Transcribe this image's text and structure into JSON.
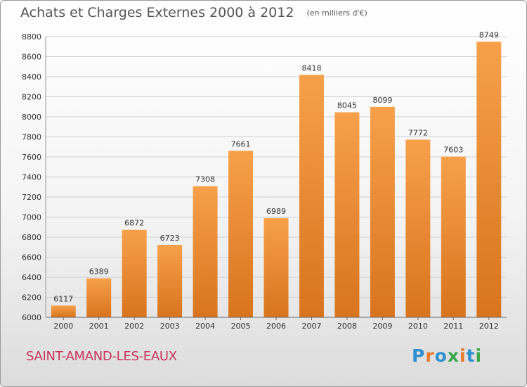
{
  "title": "Achats et Charges Externes 2000 à 2012",
  "unit": "(en milliers d'€)",
  "commune": "SAINT-AMAND-LES-EAUX",
  "logo": {
    "text": "Proxiti",
    "letters": [
      {
        "ch": "P",
        "color": "#2e8fd0"
      },
      {
        "ch": "r",
        "color": "#e9792b"
      },
      {
        "ch": "o",
        "color": "#2e8fd0"
      },
      {
        "ch": "x",
        "color": "#3aa64b"
      },
      {
        "ch": "i",
        "color": "#e9792b"
      },
      {
        "ch": "t",
        "color": "#2e8fd0"
      },
      {
        "ch": "i",
        "color": "#3aa64b"
      }
    ]
  },
  "colors": {
    "bar_top": "#f7a04a",
    "bar_bottom": "#d8741d",
    "grid": "#cfcfcf",
    "text": "#333333"
  },
  "chart_data": {
    "type": "bar",
    "title": "Achats et Charges Externes 2000 à 2012",
    "categories": [
      "2000",
      "2001",
      "2002",
      "2003",
      "2004",
      "2005",
      "2006",
      "2007",
      "2008",
      "2009",
      "2010",
      "2011",
      "2012"
    ],
    "values": [
      6117,
      6389,
      6872,
      6723,
      7308,
      7661,
      6989,
      8418,
      8045,
      8099,
      7772,
      7603,
      8749
    ],
    "ylim": [
      6000,
      8800
    ],
    "yticks": [
      6000,
      6200,
      6400,
      6600,
      6800,
      7000,
      7200,
      7400,
      7600,
      7800,
      8000,
      8200,
      8400,
      8600,
      8800
    ],
    "grid": true,
    "data_labels": true
  }
}
